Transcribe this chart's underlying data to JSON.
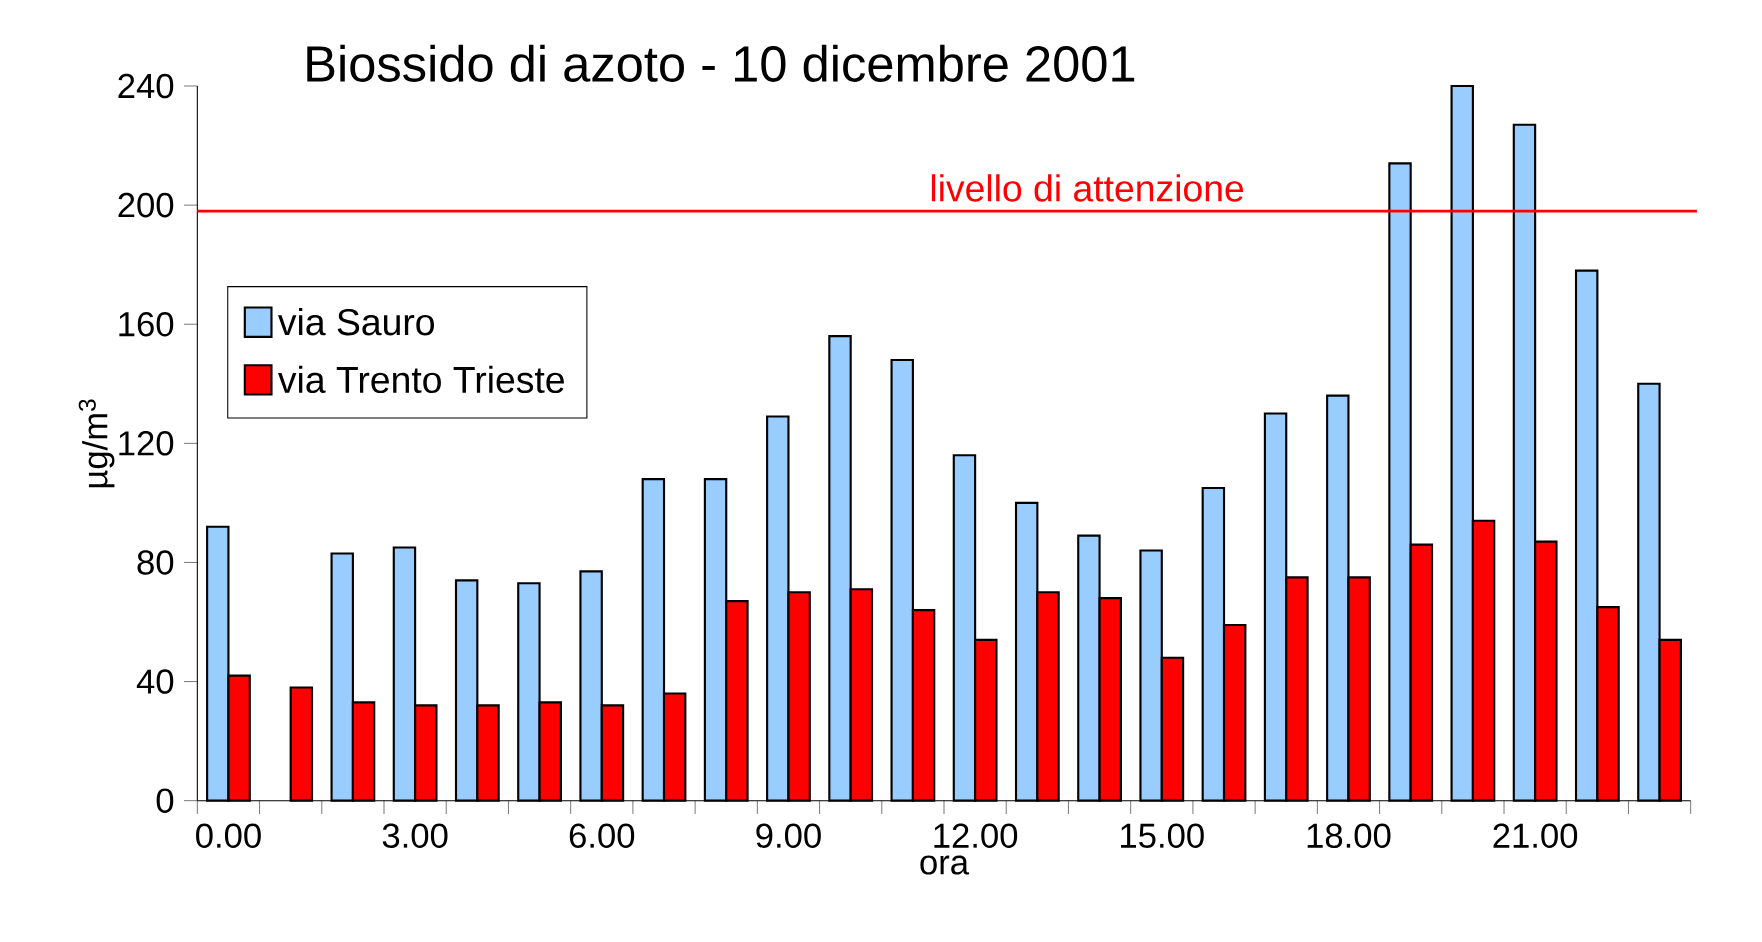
{
  "chart_data": {
    "type": "bar",
    "title": "Biossido di azoto - 10 dicembre 2001",
    "xlabel": "ora",
    "ylabel": "µg/m$^{3}$",
    "categories": [
      "0.00",
      null,
      null,
      "3.00",
      null,
      null,
      "6.00",
      null,
      null,
      "9.00",
      null,
      null,
      "12.00",
      null,
      null,
      "15.00",
      null,
      null,
      "18.00",
      null,
      null,
      "21.00",
      null,
      null
    ],
    "series": [
      {
        "name": "via Sauro",
        "color": "#99ccff",
        "values": [
          92,
          null,
          83,
          85,
          74,
          73,
          77,
          108,
          108,
          129,
          156,
          148,
          116,
          100,
          89,
          84,
          105,
          130,
          136,
          214,
          240,
          227,
          178,
          140
        ]
      },
      {
        "name": "via Trento Trieste",
        "color": "#ff0000",
        "values": [
          42,
          38,
          33,
          32,
          32,
          33,
          32,
          36,
          67,
          70,
          71,
          64,
          54,
          70,
          68,
          48,
          59,
          75,
          75,
          86,
          94,
          87,
          65,
          54
        ]
      }
    ],
    "ylim": [
      0,
      240
    ],
    "yticks": [
      0,
      40,
      80,
      120,
      160,
      200,
      240
    ],
    "ref_lines": [
      {
        "axis": "y",
        "value": 198,
        "label": "livello di attenzione",
        "color": "#ff0000"
      }
    ],
    "legend": "left",
    "grid": false
  }
}
